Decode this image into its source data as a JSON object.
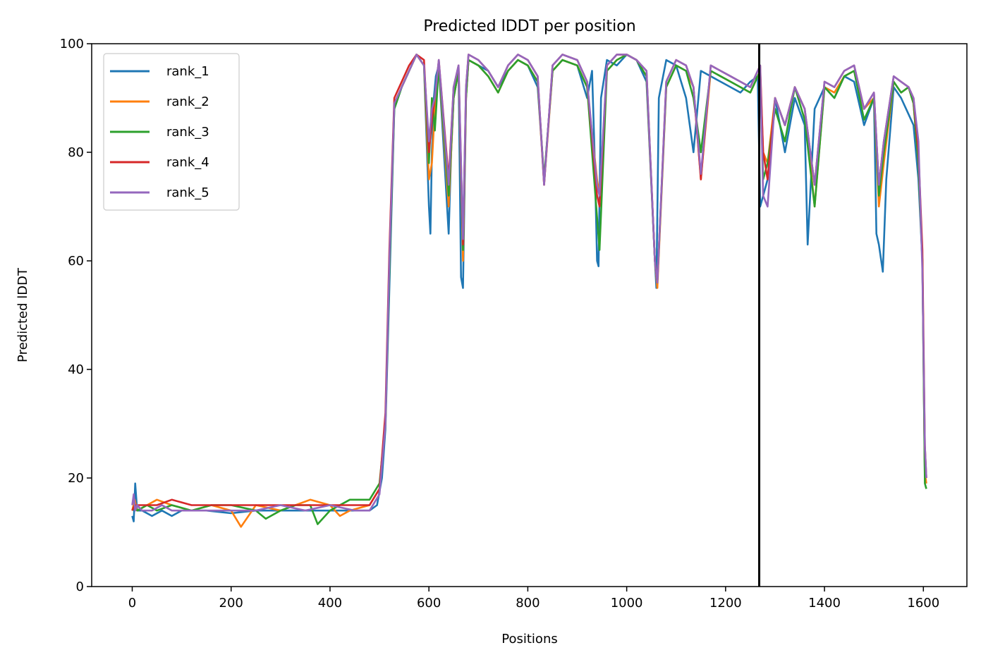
{
  "chart_data": {
    "type": "line",
    "title": "Predicted lDDT per position",
    "xlabel": "Positions",
    "ylabel": "Predicted lDDT",
    "xlim": [
      -82,
      1688
    ],
    "ylim": [
      0,
      100
    ],
    "xticks": [
      0,
      200,
      400,
      600,
      800,
      1000,
      1200,
      1400,
      1600
    ],
    "yticks": [
      0,
      20,
      40,
      60,
      80,
      100
    ],
    "grid": false,
    "legend": "top-left",
    "vline": {
      "x": 1268,
      "color": "#000000"
    },
    "colors": {
      "rank_1": "#1f77b4",
      "rank_2": "#ff7f0e",
      "rank_3": "#2ca02c",
      "rank_4": "#d62728",
      "rank_5": "#9467bd"
    },
    "series": [
      {
        "name": "rank_1",
        "color": "#1f77b4",
        "x": [
          0,
          3,
          6,
          10,
          20,
          40,
          60,
          80,
          100,
          150,
          200,
          250,
          300,
          350,
          400,
          450,
          480,
          495,
          505,
          512,
          520,
          530,
          545,
          560,
          575,
          590,
          600,
          603,
          606,
          610,
          614,
          620,
          640,
          645,
          650,
          660,
          665,
          669,
          675,
          680,
          700,
          720,
          740,
          760,
          780,
          800,
          820,
          833,
          850,
          870,
          900,
          920,
          930,
          935,
          940,
          943,
          948,
          960,
          980,
          1000,
          1020,
          1040,
          1057,
          1060,
          1065,
          1080,
          1100,
          1120,
          1135,
          1150,
          1170,
          1190,
          1210,
          1230,
          1250,
          1265,
          1270,
          1276,
          1285,
          1300,
          1320,
          1340,
          1360,
          1366,
          1380,
          1400,
          1420,
          1440,
          1460,
          1480,
          1500,
          1505,
          1510,
          1518,
          1525,
          1540,
          1555,
          1570,
          1580,
          1590,
          1598,
          1603,
          1606
        ],
        "values": [
          13,
          12,
          19,
          14,
          14,
          13,
          14,
          13,
          14,
          14,
          13.5,
          14,
          14,
          14,
          14,
          14,
          14,
          15,
          20,
          29,
          55,
          88,
          92,
          95,
          98,
          96,
          70,
          65,
          80,
          90,
          94,
          96,
          65,
          80,
          90,
          95,
          57,
          55,
          90,
          97,
          96,
          95,
          92,
          95,
          97,
          96,
          92,
          75,
          95,
          97,
          96,
          90,
          95,
          80,
          60,
          59,
          90,
          97,
          96,
          98,
          97,
          93,
          60,
          55,
          90,
          97,
          96,
          90,
          80,
          95,
          94,
          93,
          92,
          91,
          93,
          94,
          70,
          72,
          75,
          90,
          80,
          90,
          85,
          63,
          88,
          92,
          90,
          94,
          93,
          85,
          90,
          65,
          63,
          58,
          75,
          92,
          90,
          87,
          85,
          75,
          60,
          20,
          19
        ]
      },
      {
        "name": "rank_2",
        "color": "#ff7f0e",
        "x": [
          0,
          5,
          10,
          30,
          50,
          80,
          120,
          160,
          200,
          220,
          250,
          300,
          330,
          360,
          400,
          420,
          440,
          480,
          500,
          512,
          520,
          530,
          545,
          560,
          575,
          590,
          600,
          606,
          612,
          620,
          640,
          650,
          660,
          669,
          675,
          680,
          700,
          720,
          740,
          760,
          780,
          800,
          820,
          833,
          850,
          870,
          900,
          920,
          940,
          945,
          960,
          980,
          1000,
          1020,
          1040,
          1057,
          1062,
          1080,
          1100,
          1120,
          1135,
          1150,
          1170,
          1190,
          1210,
          1230,
          1250,
          1265,
          1270,
          1276,
          1285,
          1300,
          1320,
          1340,
          1360,
          1380,
          1400,
          1420,
          1440,
          1460,
          1480,
          1500,
          1510,
          1520,
          1540,
          1555,
          1570,
          1580,
          1590,
          1598,
          1603,
          1606
        ],
        "values": [
          14,
          16,
          14,
          15,
          16,
          15,
          14,
          15,
          14,
          11,
          15,
          14,
          15,
          16,
          15,
          13,
          14,
          15,
          18,
          30,
          60,
          89,
          92,
          95,
          98,
          96,
          75,
          78,
          88,
          96,
          70,
          90,
          95,
          60,
          90,
          97,
          96,
          94,
          91,
          95,
          97,
          96,
          93,
          74,
          95,
          97,
          96,
          92,
          75,
          72,
          95,
          97,
          98,
          97,
          94,
          60,
          55,
          92,
          96,
          95,
          92,
          75,
          95,
          94,
          93,
          92,
          91,
          94,
          95,
          80,
          78,
          90,
          85,
          92,
          88,
          70,
          92,
          91,
          94,
          95,
          88,
          90,
          70,
          78,
          93,
          91,
          92,
          89,
          78,
          60,
          21,
          19
        ]
      },
      {
        "name": "rank_3",
        "color": "#2ca02c",
        "x": [
          0,
          5,
          10,
          30,
          50,
          80,
          120,
          160,
          200,
          250,
          270,
          300,
          330,
          360,
          375,
          400,
          440,
          480,
          500,
          512,
          520,
          530,
          545,
          560,
          575,
          590,
          600,
          606,
          612,
          620,
          640,
          650,
          660,
          669,
          675,
          680,
          700,
          720,
          740,
          760,
          780,
          800,
          820,
          833,
          850,
          870,
          900,
          920,
          940,
          945,
          960,
          980,
          1000,
          1020,
          1040,
          1057,
          1062,
          1080,
          1100,
          1120,
          1135,
          1150,
          1170,
          1190,
          1210,
          1230,
          1250,
          1265,
          1270,
          1276,
          1285,
          1300,
          1320,
          1340,
          1360,
          1380,
          1400,
          1420,
          1440,
          1460,
          1480,
          1500,
          1510,
          1520,
          1540,
          1555,
          1570,
          1580,
          1590,
          1598,
          1603,
          1606
        ],
        "values": [
          14,
          15,
          14,
          15,
          14,
          15,
          14,
          15,
          15,
          14,
          12.5,
          14,
          15,
          15,
          11.5,
          14,
          16,
          16,
          19,
          30,
          58,
          88,
          92,
          95,
          98,
          96,
          78,
          90,
          84,
          96,
          72,
          90,
          95,
          62,
          90,
          97,
          96,
          94,
          91,
          95,
          97,
          96,
          93,
          75,
          95,
          97,
          96,
          92,
          68,
          62,
          95,
          97,
          98,
          97,
          94,
          60,
          56,
          92,
          96,
          95,
          90,
          80,
          95,
          94,
          93,
          92,
          91,
          94,
          95,
          75,
          78,
          88,
          82,
          92,
          86,
          70,
          92,
          90,
          94,
          95,
          86,
          90,
          72,
          80,
          93,
          91,
          92,
          89,
          78,
          60,
          19,
          18
        ]
      },
      {
        "name": "rank_4",
        "color": "#d62728",
        "x": [
          0,
          5,
          10,
          30,
          50,
          80,
          120,
          160,
          200,
          250,
          300,
          350,
          400,
          440,
          480,
          500,
          512,
          520,
          530,
          545,
          560,
          575,
          590,
          600,
          606,
          612,
          620,
          640,
          650,
          660,
          669,
          675,
          680,
          700,
          720,
          740,
          760,
          780,
          800,
          820,
          833,
          850,
          870,
          900,
          920,
          940,
          945,
          960,
          980,
          1000,
          1020,
          1040,
          1057,
          1062,
          1080,
          1100,
          1120,
          1135,
          1150,
          1170,
          1190,
          1210,
          1230,
          1250,
          1265,
          1270,
          1276,
          1285,
          1300,
          1320,
          1340,
          1360,
          1380,
          1400,
          1420,
          1440,
          1460,
          1480,
          1500,
          1510,
          1520,
          1540,
          1555,
          1570,
          1580,
          1590,
          1598,
          1603,
          1606
        ],
        "values": [
          14,
          15,
          15,
          15,
          15,
          16,
          15,
          15,
          15,
          15,
          15,
          15,
          15,
          15,
          15,
          18,
          32,
          62,
          90,
          93,
          96,
          98,
          97,
          80,
          86,
          90,
          97,
          75,
          92,
          96,
          63,
          92,
          98,
          97,
          95,
          92,
          96,
          98,
          97,
          94,
          74,
          96,
          98,
          97,
          93,
          72,
          70,
          96,
          98,
          98,
          97,
          95,
          60,
          56,
          93,
          97,
          96,
          92,
          75,
          96,
          95,
          94,
          93,
          92,
          95,
          96,
          80,
          75,
          90,
          85,
          92,
          88,
          74,
          93,
          92,
          95,
          96,
          88,
          91,
          74,
          82,
          94,
          93,
          92,
          90,
          80,
          62,
          26,
          20
        ]
      },
      {
        "name": "rank_5",
        "color": "#9467bd",
        "x": [
          0,
          3,
          6,
          10,
          20,
          40,
          60,
          80,
          100,
          150,
          200,
          250,
          300,
          350,
          400,
          450,
          480,
          500,
          512,
          520,
          530,
          545,
          560,
          575,
          590,
          600,
          606,
          612,
          620,
          640,
          650,
          660,
          669,
          675,
          680,
          700,
          720,
          740,
          760,
          780,
          800,
          820,
          833,
          850,
          870,
          900,
          920,
          940,
          945,
          960,
          980,
          1000,
          1020,
          1040,
          1057,
          1062,
          1080,
          1100,
          1120,
          1135,
          1150,
          1170,
          1190,
          1210,
          1230,
          1250,
          1265,
          1270,
          1276,
          1285,
          1300,
          1320,
          1340,
          1360,
          1380,
          1400,
          1420,
          1440,
          1460,
          1480,
          1500,
          1510,
          1520,
          1540,
          1555,
          1570,
          1580,
          1590,
          1598,
          1603,
          1606
        ],
        "values": [
          15,
          17,
          14,
          15,
          14,
          14,
          15,
          14,
          14,
          14,
          14,
          14,
          15,
          14,
          15,
          14,
          14,
          17,
          30,
          60,
          89,
          92,
          95,
          98,
          96,
          82,
          88,
          90,
          97,
          74,
          92,
          96,
          64,
          92,
          98,
          97,
          95,
          92,
          96,
          98,
          97,
          94,
          74,
          96,
          98,
          97,
          93,
          74,
          72,
          96,
          98,
          98,
          97,
          95,
          60,
          56,
          93,
          97,
          96,
          92,
          76,
          96,
          95,
          94,
          93,
          92,
          95,
          96,
          72,
          70,
          90,
          85,
          92,
          88,
          74,
          93,
          92,
          95,
          96,
          88,
          91,
          74,
          82,
          94,
          93,
          92,
          90,
          82,
          58,
          26,
          20
        ]
      }
    ]
  }
}
